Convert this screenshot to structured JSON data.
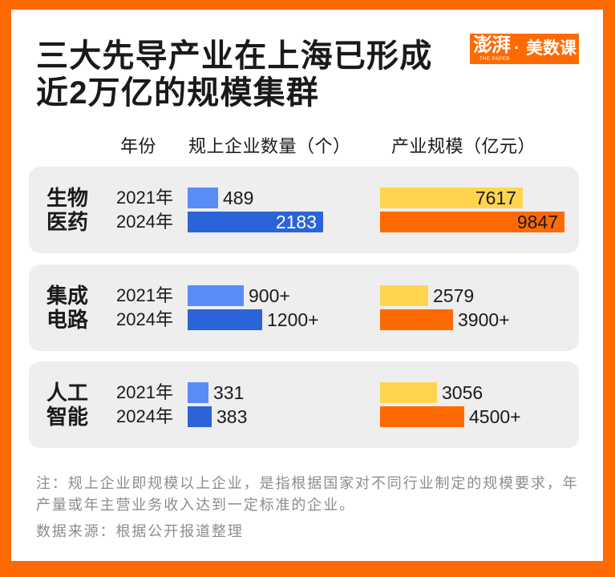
{
  "theme": {
    "frame_color": "#FF6A00",
    "panel_color": "#EEEEEE",
    "note_color": "#8C8C8C"
  },
  "logo": {
    "brand": "澎湃",
    "tagline": "THE PAPER",
    "separator": "·",
    "column": "美数课"
  },
  "title": [
    "三大先导产业在上海已形成",
    "近2万亿的规模集群"
  ],
  "chart_data": {
    "type": "bar",
    "orientation": "horizontal",
    "row_header": "年份",
    "categories": [
      "生物医药",
      "集成电路",
      "人工智能"
    ],
    "series_names": [
      "2021年",
      "2024年"
    ],
    "measures": [
      {
        "title": "规上企业数量（个）",
        "label_inside_color": "#FFFFFF",
        "series": [
          {
            "color": "#5A8CF6",
            "values": [
              489,
              900,
              331
            ],
            "labels": [
              "489",
              "900+",
              "331"
            ]
          },
          {
            "color": "#2B63D9",
            "values": [
              2183,
              1200,
              383
            ],
            "labels": [
              "2183",
              "1200+",
              "383"
            ]
          }
        ]
      },
      {
        "title": "产业规模（亿元）",
        "label_inside_color": "#1A1A1A",
        "series": [
          {
            "color": "#FFD54F",
            "values": [
              7617,
              2579,
              3056
            ],
            "labels": [
              "7617",
              "2579",
              "3056"
            ]
          },
          {
            "color": "#FF6A00",
            "values": [
              9847,
              3900,
              4500
            ],
            "labels": [
              "9847",
              "3900+",
              "4500+"
            ]
          }
        ]
      }
    ]
  },
  "footer": {
    "note": [
      "注：规上企业即规模以上企业，是指根据国家对不同行业制定的规模要求，年",
      "产量或年主营业务收入达到一定标准的企业。"
    ],
    "source": "数据来源：根据公开报道整理"
  }
}
